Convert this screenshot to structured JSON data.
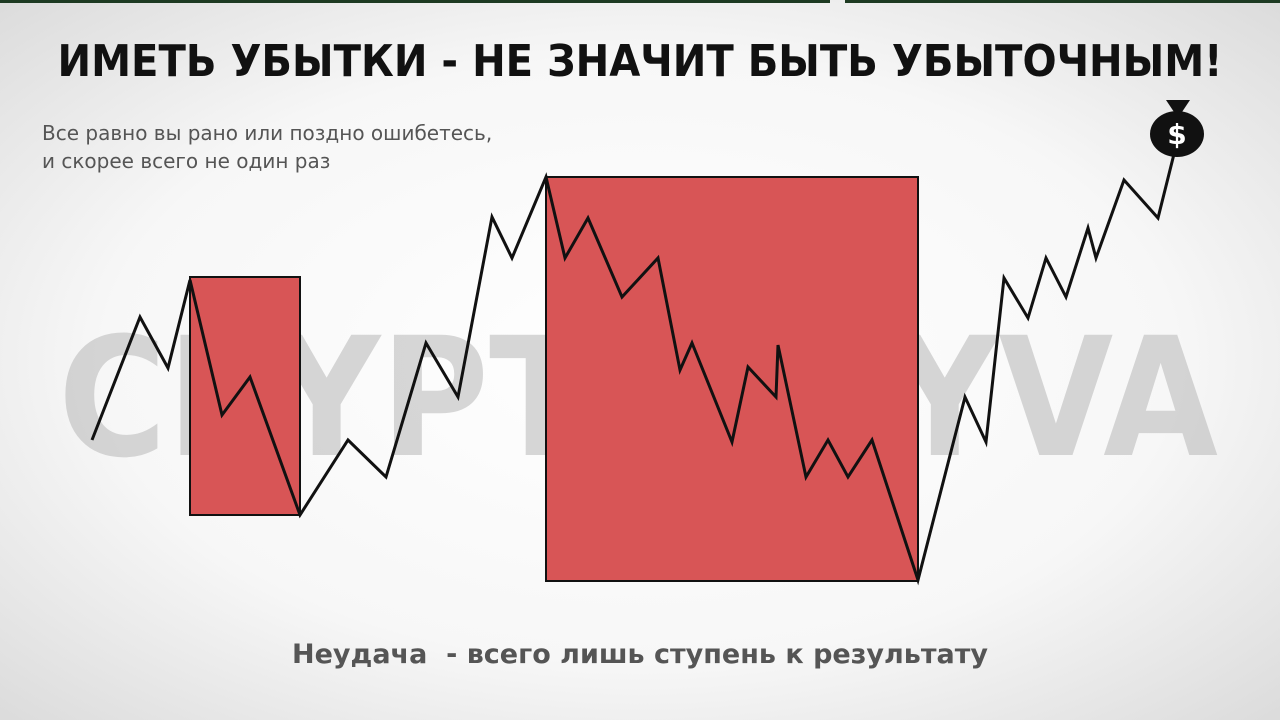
{
  "header": {
    "title": "ИМЕТЬ УБЫТКИ - НЕ ЗНАЧИТ БЫТЬ УБЫТОЧНЫМ!",
    "subtitle": [
      "Все равно вы рано или поздно ошибетесь,",
      "и скорее всего не один раз"
    ]
  },
  "watermark": "CRYPTO_AYVA",
  "icon_label": "$",
  "footer": "Неудача  - всего лишь ступень к результату"
}
